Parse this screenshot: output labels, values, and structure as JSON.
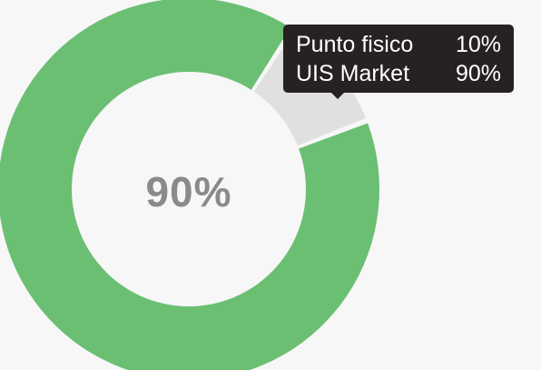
{
  "chart_data": {
    "type": "pie",
    "categories": [
      "Punto fisico",
      "UIS Market"
    ],
    "values": [
      10,
      90
    ],
    "colors": [
      "#e0e0e0",
      "#6bbf73"
    ],
    "center_label": "90%",
    "tooltip": [
      {
        "label": "Punto fisico",
        "value": "10%"
      },
      {
        "label": "UIS Market",
        "value": "90%"
      }
    ]
  }
}
